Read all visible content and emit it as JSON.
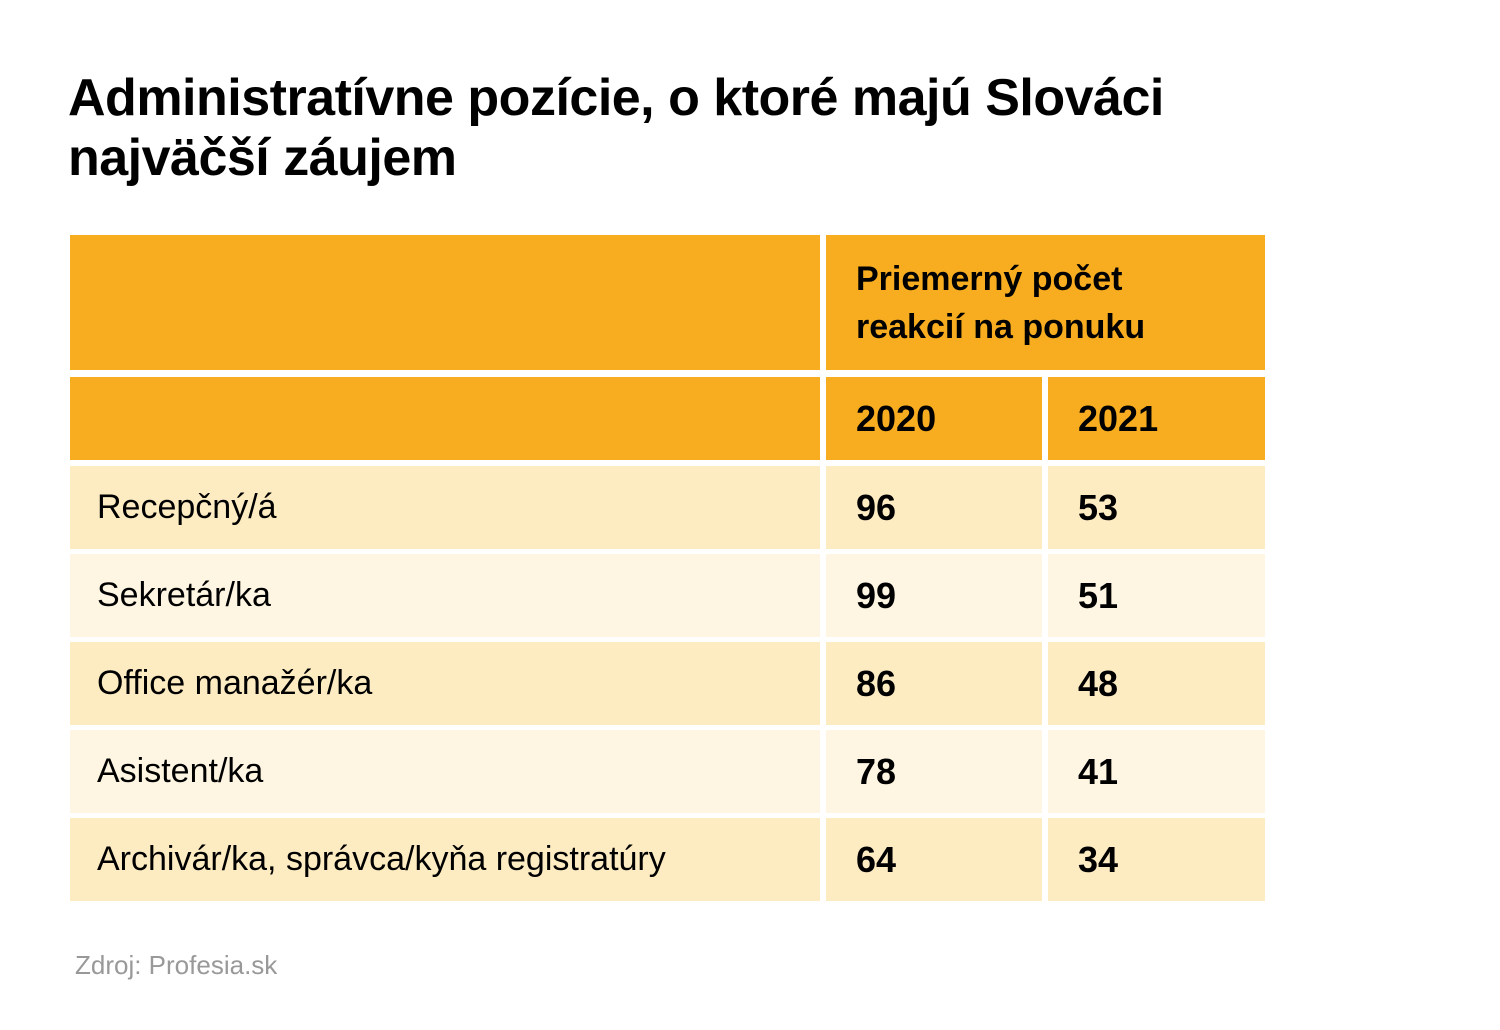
{
  "title": "Administratívne pozície, o ktoré majú Slováci najväčší záujem",
  "chart_data": {
    "type": "table",
    "title": "Administratívne pozície, o ktoré majú Slováci najväčší záujem",
    "header_group": "Priemerný počet reakcií na ponuku",
    "columns": [
      "2020",
      "2021"
    ],
    "rows": [
      {
        "label": "Recepčný/á",
        "values": [
          96,
          53
        ]
      },
      {
        "label": "Sekretár/ka",
        "values": [
          99,
          51
        ]
      },
      {
        "label": "Office manažér/ka",
        "values": [
          86,
          48
        ]
      },
      {
        "label": "Asistent/ka",
        "values": [
          78,
          41
        ]
      },
      {
        "label": "Archivár/ka, správca/kyňa registratúry",
        "values": [
          64,
          34
        ]
      }
    ]
  },
  "source": "Zdroj: Profesia.sk",
  "colors": {
    "header": "#f7ad1f",
    "row_odd": "#fdebc2",
    "row_even": "#fef6e2",
    "source": "#999999"
  }
}
